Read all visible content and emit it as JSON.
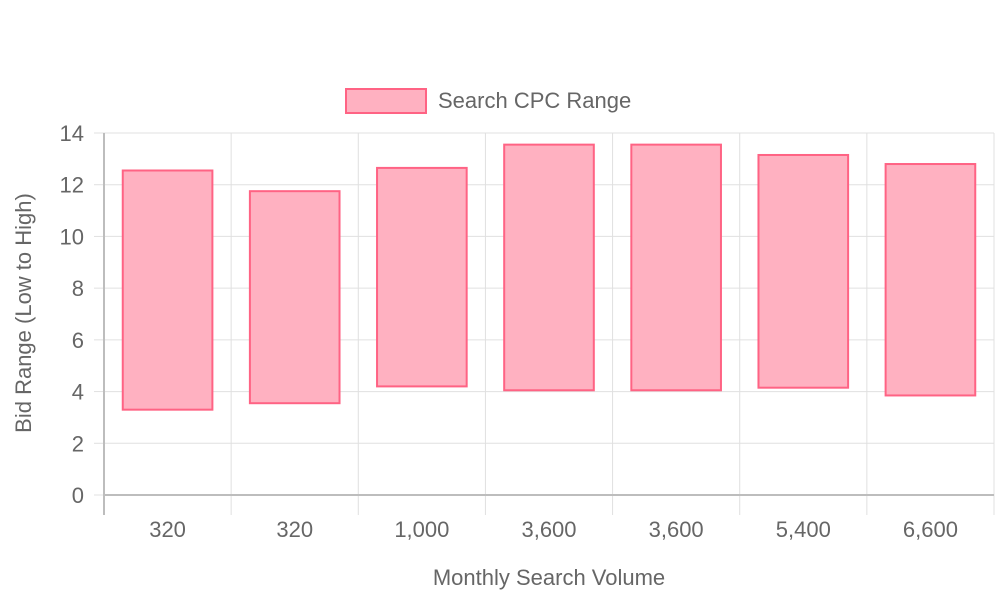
{
  "chart_data": {
    "type": "floating-bar",
    "title": "",
    "xlabel": "Monthly Search Volume",
    "ylabel": "Bid Range (Low to High)",
    "categories": [
      "320",
      "320",
      "1,000",
      "3,600",
      "3,600",
      "5,400",
      "6,600"
    ],
    "series": [
      {
        "name": "Search CPC Range",
        "values": [
          [
            3.3,
            12.55
          ],
          [
            3.55,
            11.75
          ],
          [
            4.2,
            12.65
          ],
          [
            4.05,
            13.55
          ],
          [
            4.05,
            13.55
          ],
          [
            4.15,
            13.15
          ],
          [
            3.85,
            12.8
          ]
        ]
      }
    ],
    "ylim": [
      0,
      14
    ],
    "yticks": [
      "0",
      "2",
      "4",
      "6",
      "8",
      "10",
      "12",
      "14"
    ],
    "grid": true,
    "legend_position": "top"
  },
  "colors": {
    "bar_fill": "#ffb1c1",
    "bar_stroke": "#ff6384",
    "grid": "#e0e0e0",
    "axis": "#bdbdbd",
    "text": "#666666"
  }
}
